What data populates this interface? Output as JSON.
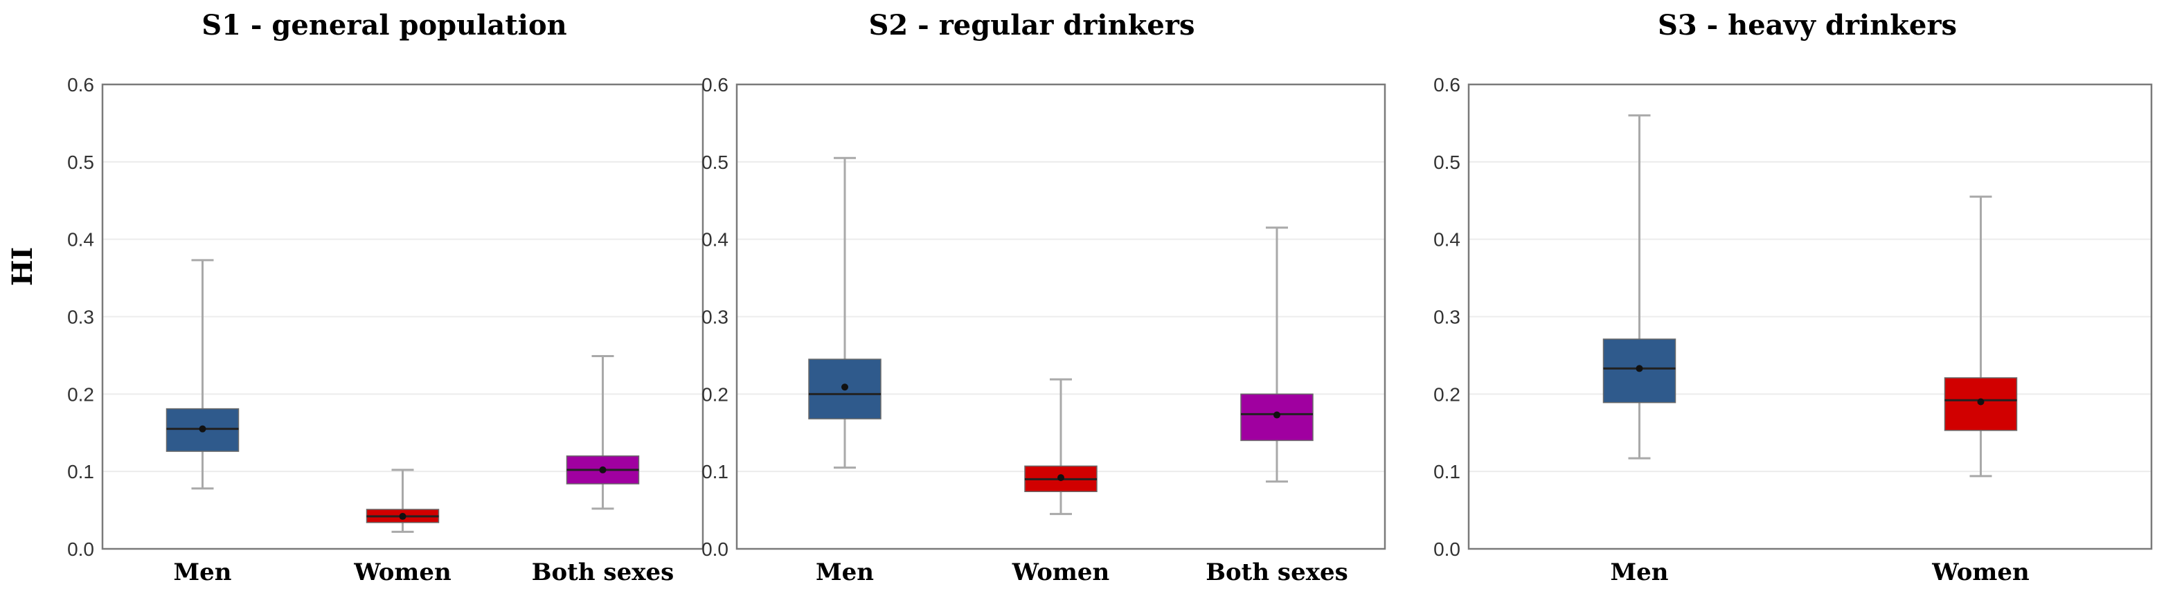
{
  "y_axis_label": "HI",
  "colors": {
    "Men": "#2f5a8c",
    "Women": "#d10000",
    "Both sexes": "#a000a0"
  },
  "chart_data": [
    {
      "type": "box",
      "title": "S1 - general population",
      "ylabel": "HI",
      "ylim": [
        0,
        0.6
      ],
      "yticks": [
        "0.0",
        "0.1",
        "0.2",
        "0.3",
        "0.4",
        "0.5",
        "0.6"
      ],
      "categories": [
        "Men",
        "Women",
        "Both sexes"
      ],
      "boxes": [
        {
          "name": "Men",
          "min": 0.078,
          "q1": 0.126,
          "median": 0.155,
          "mean": 0.155,
          "q3": 0.181,
          "max": 0.373
        },
        {
          "name": "Women",
          "min": 0.022,
          "q1": 0.034,
          "median": 0.042,
          "mean": 0.042,
          "q3": 0.051,
          "max": 0.102
        },
        {
          "name": "Both sexes",
          "min": 0.052,
          "q1": 0.084,
          "median": 0.102,
          "mean": 0.102,
          "q3": 0.12,
          "max": 0.249
        }
      ]
    },
    {
      "type": "box",
      "title": "S2 - regular drinkers",
      "ylabel": "",
      "ylim": [
        0,
        0.6
      ],
      "yticks": [
        "0.0",
        "0.1",
        "0.2",
        "0.3",
        "0.4",
        "0.5",
        "0.6"
      ],
      "categories": [
        "Men",
        "Women",
        "Both sexes"
      ],
      "boxes": [
        {
          "name": "Men",
          "min": 0.105,
          "q1": 0.168,
          "median": 0.2,
          "mean": 0.209,
          "q3": 0.245,
          "max": 0.505
        },
        {
          "name": "Women",
          "min": 0.045,
          "q1": 0.074,
          "median": 0.09,
          "mean": 0.092,
          "q3": 0.107,
          "max": 0.219
        },
        {
          "name": "Both sexes",
          "min": 0.087,
          "q1": 0.14,
          "median": 0.174,
          "mean": 0.173,
          "q3": 0.2,
          "max": 0.415
        }
      ]
    },
    {
      "type": "box",
      "title": "S3 - heavy drinkers",
      "ylabel": "",
      "ylim": [
        0,
        0.6
      ],
      "yticks": [
        "0.0",
        "0.1",
        "0.2",
        "0.3",
        "0.4",
        "0.5",
        "0.6"
      ],
      "categories": [
        "Men",
        "Women"
      ],
      "boxes": [
        {
          "name": "Men",
          "min": 0.117,
          "q1": 0.189,
          "median": 0.233,
          "mean": 0.233,
          "q3": 0.271,
          "max": 0.56
        },
        {
          "name": "Women",
          "min": 0.094,
          "q1": 0.153,
          "median": 0.192,
          "mean": 0.19,
          "q3": 0.221,
          "max": 0.455
        }
      ]
    }
  ]
}
